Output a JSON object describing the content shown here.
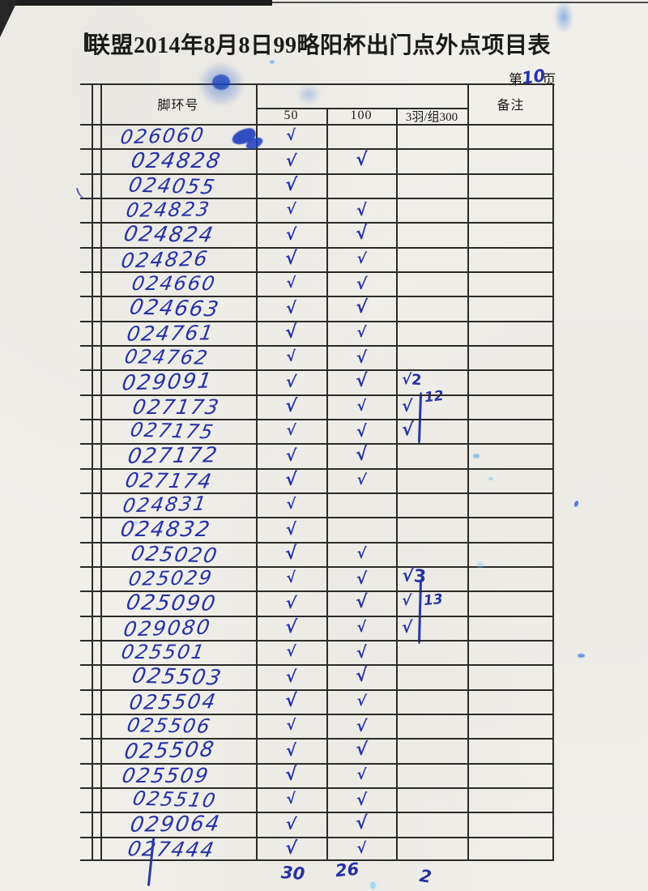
{
  "page": {
    "title": "联盟2014年8月8日99略阳杯出门点外点项目表",
    "page_label_prefix": "第",
    "page_number": "10",
    "page_label_suffix": "页"
  },
  "table": {
    "headers": {
      "ring_col": "脚环号",
      "remark_col": "备注",
      "sub_columns": [
        "50",
        "100",
        "3羽/组300"
      ]
    },
    "rows": [
      {
        "ring": "026060",
        "c50": "√",
        "c100": "",
        "c300": ""
      },
      {
        "ring": "024828",
        "c50": "√",
        "c100": "√",
        "c300": ""
      },
      {
        "ring": "024055",
        "c50": "√",
        "c100": "",
        "c300": ""
      },
      {
        "ring": "024823",
        "c50": "√",
        "c100": "√",
        "c300": ""
      },
      {
        "ring": "024824",
        "c50": "√",
        "c100": "√",
        "c300": ""
      },
      {
        "ring": "024826",
        "c50": "√",
        "c100": "√",
        "c300": ""
      },
      {
        "ring": "024660",
        "c50": "√",
        "c100": "√",
        "c300": ""
      },
      {
        "ring": "024663",
        "c50": "√",
        "c100": "√",
        "c300": ""
      },
      {
        "ring": "024761",
        "c50": "√",
        "c100": "√",
        "c300": ""
      },
      {
        "ring": "024762",
        "c50": "√",
        "c100": "√",
        "c300": ""
      },
      {
        "ring": "029091",
        "c50": "√",
        "c100": "√",
        "c300": "√2"
      },
      {
        "ring": "027173",
        "c50": "√",
        "c100": "√",
        "c300": "√"
      },
      {
        "ring": "027175",
        "c50": "√",
        "c100": "√",
        "c300": "√"
      },
      {
        "ring": "027172",
        "c50": "√",
        "c100": "√",
        "c300": ""
      },
      {
        "ring": "027174",
        "c50": "√",
        "c100": "√",
        "c300": ""
      },
      {
        "ring": "024831",
        "c50": "√",
        "c100": "",
        "c300": ""
      },
      {
        "ring": "024832",
        "c50": "√",
        "c100": "",
        "c300": ""
      },
      {
        "ring": "025020",
        "c50": "√",
        "c100": "√",
        "c300": ""
      },
      {
        "ring": "025029",
        "c50": "√",
        "c100": "√",
        "c300": "√3"
      },
      {
        "ring": "025090",
        "c50": "√",
        "c100": "√",
        "c300": "√"
      },
      {
        "ring": "029080",
        "c50": "√",
        "c100": "√",
        "c300": "√"
      },
      {
        "ring": "025501",
        "c50": "√",
        "c100": "√",
        "c300": ""
      },
      {
        "ring": "025503",
        "c50": "√",
        "c100": "√",
        "c300": ""
      },
      {
        "ring": "025504",
        "c50": "√",
        "c100": "√",
        "c300": ""
      },
      {
        "ring": "025506",
        "c50": "√",
        "c100": "√",
        "c300": ""
      },
      {
        "ring": "025508",
        "c50": "√",
        "c100": "√",
        "c300": ""
      },
      {
        "ring": "025509",
        "c50": "√",
        "c100": "√",
        "c300": ""
      },
      {
        "ring": "025510",
        "c50": "√",
        "c100": "√",
        "c300": ""
      },
      {
        "ring": "029064",
        "c50": "√",
        "c100": "√",
        "c300": ""
      },
      {
        "ring": "027444",
        "c50": "√",
        "c100": "√",
        "c300": ""
      }
    ],
    "totals": {
      "c50": "30",
      "c100": "26",
      "c300": "2"
    }
  },
  "annotations": {
    "group1_label": "12",
    "group2_label": "13"
  },
  "colors": {
    "pen_blue": "#2633a2",
    "paper": "#f1efea",
    "grid_line": "#2b2b28",
    "stain_cyan": "#6ec8f0"
  }
}
